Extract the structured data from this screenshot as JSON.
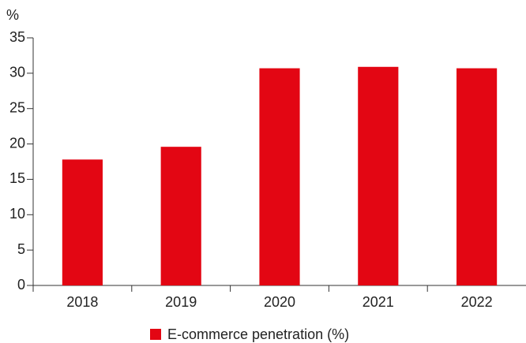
{
  "chart_data": {
    "type": "bar",
    "ylabel": "%",
    "categories": [
      "2018",
      "2019",
      "2020",
      "2021",
      "2022"
    ],
    "series": [
      {
        "name": "E-commerce penetration (%)",
        "color": "#e30613",
        "values": [
          17.8,
          19.6,
          30.7,
          30.9,
          30.7
        ]
      }
    ],
    "ylim": [
      0,
      35
    ],
    "yticks": [
      0,
      5,
      10,
      15,
      20,
      25,
      30,
      35
    ],
    "grid": false,
    "legend": "bottom"
  }
}
